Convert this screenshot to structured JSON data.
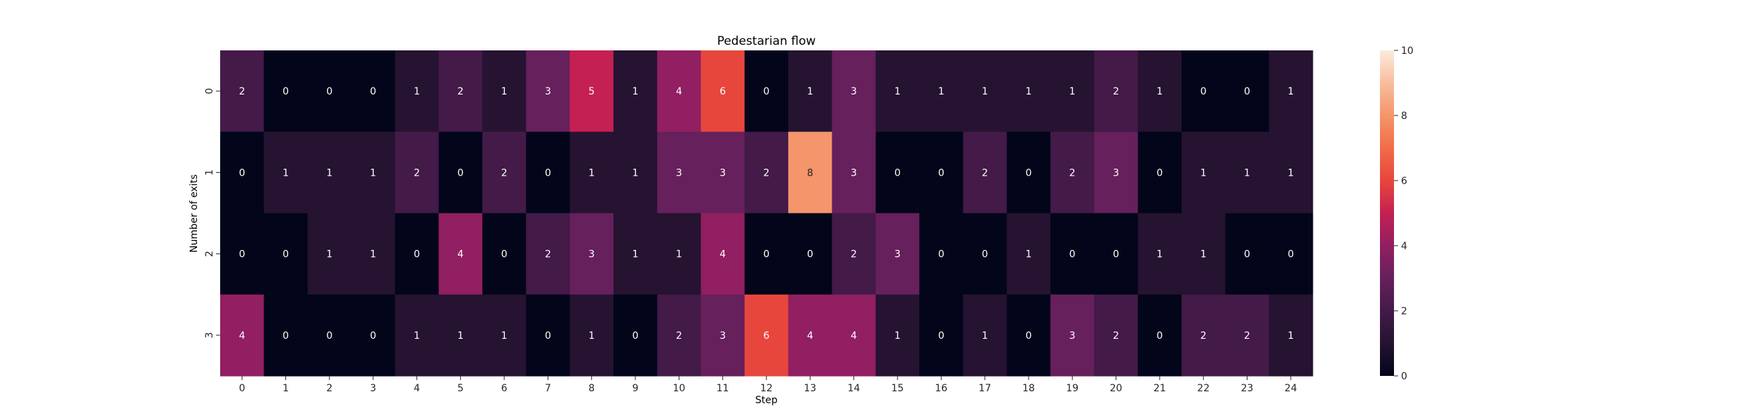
{
  "chart_data": {
    "type": "heatmap",
    "title": "Pedestarian flow",
    "xlabel": "Step",
    "ylabel": "Number of exits",
    "x_categories": [
      "0",
      "1",
      "2",
      "3",
      "4",
      "5",
      "6",
      "7",
      "8",
      "9",
      "10",
      "11",
      "12",
      "13",
      "14",
      "15",
      "16",
      "17",
      "18",
      "19",
      "20",
      "21",
      "22",
      "23",
      "24"
    ],
    "y_categories": [
      "0",
      "1",
      "2",
      "3"
    ],
    "values": [
      [
        2,
        0,
        0,
        0,
        1,
        2,
        1,
        3,
        5,
        1,
        4,
        6,
        0,
        1,
        3,
        1,
        1,
        1,
        1,
        1,
        2,
        1,
        0,
        0,
        1
      ],
      [
        0,
        1,
        1,
        1,
        2,
        0,
        2,
        0,
        1,
        1,
        3,
        3,
        2,
        8,
        3,
        0,
        0,
        2,
        0,
        2,
        3,
        0,
        1,
        1,
        1
      ],
      [
        0,
        0,
        1,
        1,
        0,
        4,
        0,
        2,
        3,
        1,
        1,
        4,
        0,
        0,
        2,
        3,
        0,
        0,
        1,
        0,
        0,
        1,
        1,
        0,
        0
      ],
      [
        4,
        0,
        0,
        0,
        1,
        1,
        1,
        0,
        1,
        0,
        2,
        3,
        6,
        4,
        4,
        1,
        0,
        1,
        0,
        3,
        2,
        0,
        2,
        2,
        1
      ]
    ],
    "vmin": 0,
    "vmax": 10,
    "colorbar_ticks": [
      "0",
      "2",
      "4",
      "6",
      "8",
      "10"
    ],
    "colormap": "rocket",
    "annotate": true,
    "grid": false
  }
}
